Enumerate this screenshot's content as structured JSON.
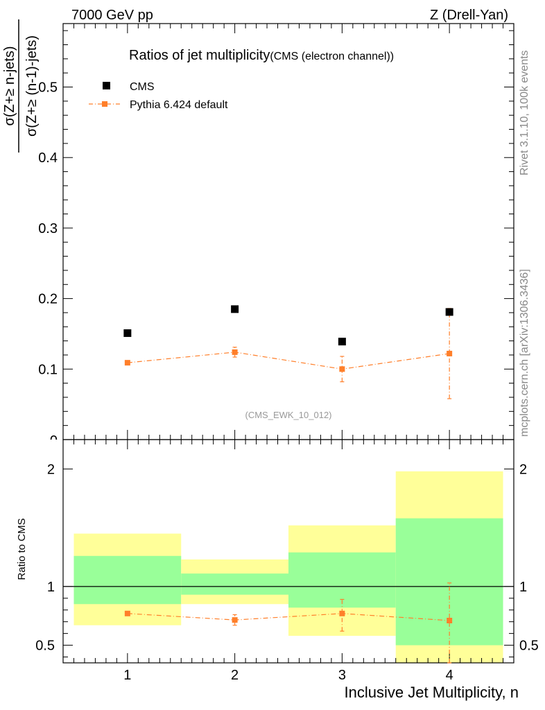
{
  "header": {
    "left": "7000 GeV pp",
    "right": "Z (Drell-Yan)"
  },
  "side_text": {
    "rivet": "Rivet 3.1.10,  100k events",
    "source": "mcplots.cern.ch [arXiv:1306.3436]"
  },
  "main_plot": {
    "title": "Ratios of jet multiplicity",
    "subtitle": "(CMS (electron channel))",
    "ylabel_num": "σ(Z+≥ n-jets)",
    "ylabel_den": "σ(Z+≥ (n-1)-jets)",
    "watermark": "(CMS_EWK_10_012)",
    "legend": [
      {
        "label": "CMS",
        "color": "#000000"
      },
      {
        "label": "Pythia 6.424 default",
        "color": "#ff7f2a"
      }
    ]
  },
  "ratio_plot": {
    "ylabel": "Ratio to CMS"
  },
  "xlabel": "Inclusive Jet Multiplicity, n",
  "chart_data": [
    {
      "type": "scatter",
      "title": "Ratios of jet multiplicity",
      "subtitle": "(CMS (electron channel))",
      "xlabel": "Inclusive Jet Multiplicity, n",
      "ylabel": "σ(Z+≥ n-jets) / σ(Z+≥ (n-1)-jets)",
      "xlim": [
        0.4,
        4.6
      ],
      "ylim": [
        0,
        0.59
      ],
      "x_ticks": [
        1,
        2,
        3,
        4
      ],
      "y_ticks": [
        0.1,
        0.2,
        0.3,
        0.4,
        0.5
      ],
      "y_tick_labels": [
        "0.1",
        "0.2",
        "0.3",
        "0.4",
        "0.5"
      ],
      "series": [
        {
          "name": "CMS",
          "color": "#000000",
          "marker": "square",
          "x": [
            1,
            2,
            3,
            4
          ],
          "y": [
            0.151,
            0.185,
            0.139,
            0.181
          ]
        },
        {
          "name": "Pythia 6.424 default",
          "color": "#ff7f2a",
          "marker": "square-line",
          "x": [
            1,
            2,
            3,
            4
          ],
          "y": [
            0.109,
            0.124,
            0.1,
            0.122
          ],
          "err": [
            0.002,
            0.007,
            0.018,
            0.064
          ]
        }
      ]
    },
    {
      "type": "scatter",
      "ylabel": "Ratio to CMS",
      "xlim": [
        0.4,
        4.6
      ],
      "ylim": [
        0.35,
        2.25
      ],
      "y_ticks": [
        0.5,
        1,
        2
      ],
      "y_tick_labels": [
        "0.5",
        "1",
        "2"
      ],
      "bands": [
        {
          "x_from": 0.5,
          "x_to": 1.5,
          "inner": [
            0.85,
            1.26
          ],
          "outer": [
            0.67,
            1.45
          ]
        },
        {
          "x_from": 1.5,
          "x_to": 2.5,
          "inner": [
            0.93,
            1.11
          ],
          "outer": [
            0.85,
            1.23
          ]
        },
        {
          "x_from": 2.5,
          "x_to": 3.5,
          "inner": [
            0.82,
            1.29
          ],
          "outer": [
            0.58,
            1.52
          ]
        },
        {
          "x_from": 3.5,
          "x_to": 4.5,
          "inner": [
            0.5,
            1.58
          ],
          "outer": [
            0.35,
            1.98
          ]
        }
      ],
      "reference_line": 1,
      "series": [
        {
          "name": "Pythia 6.424 default",
          "color": "#ff7f2a",
          "x": [
            1,
            2,
            3,
            4
          ],
          "y": [
            0.77,
            0.715,
            0.77,
            0.71
          ],
          "err_lo": [
            0.01,
            0.045,
            0.15,
            0.36
          ],
          "err_hi": [
            0.01,
            0.045,
            0.12,
            0.32
          ]
        }
      ]
    }
  ]
}
